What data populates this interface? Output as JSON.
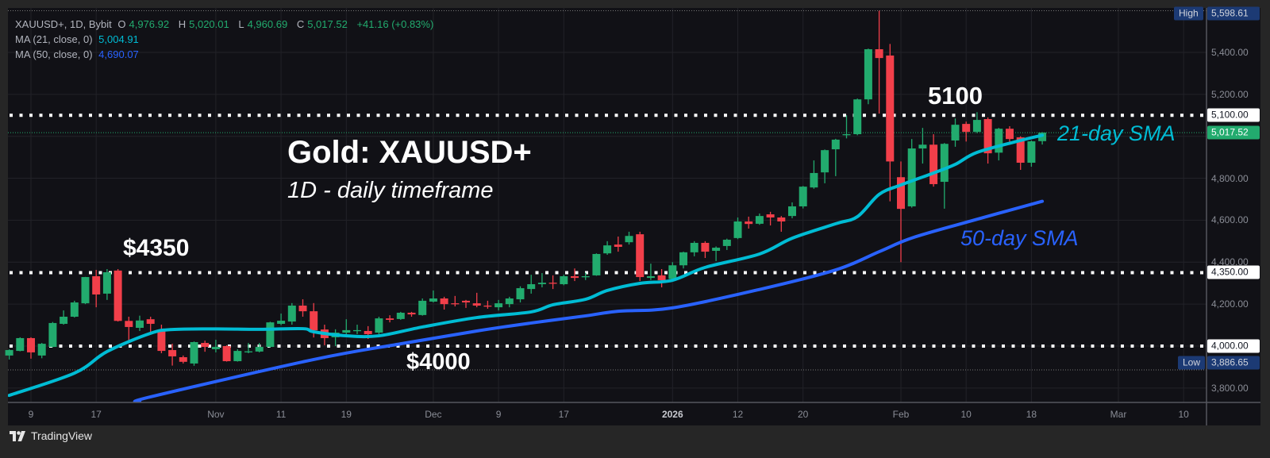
{
  "header": {
    "symbol": "XAUUSD+, 1D, Bybit",
    "open_label": "O",
    "open": "4,976.92",
    "high_label": "H",
    "high": "5,020.01",
    "low_label": "L",
    "low": "4,960.69",
    "close_label": "C",
    "close": "5,017.52",
    "change": "+41.16 (+0.83%)",
    "ma21_label": "MA (21, close, 0)",
    "ma21_value": "5,004.91",
    "ma50_label": "MA (50, close, 0)",
    "ma50_value": "4,690.07"
  },
  "annotations": {
    "title": "Gold: XAUUSD+",
    "subtitle": "1D - daily timeframe",
    "level_4350": "$4350",
    "level_4000": "$4000",
    "level_5100": "5100",
    "sma21_label": "21-day SMA",
    "sma50_label": "50-day SMA"
  },
  "price_axis": {
    "ticks": [
      "5,400.00",
      "5,200.00",
      "4,800.00",
      "4,600.00",
      "4,400.00",
      "4,200.00",
      "3,800.00"
    ],
    "tick_values": [
      5400,
      5200,
      4800,
      4600,
      4400,
      4200,
      3800
    ],
    "high_tag": "High",
    "high_value": "5,598.61",
    "low_tag": "Low",
    "low_value": "3,886.65",
    "level_labels": [
      "5,100.00",
      "4,350.00",
      "4,000.00"
    ],
    "current_price": "5,017.52"
  },
  "time_axis": [
    {
      "label": "9",
      "date": "2025-10-09"
    },
    {
      "label": "17",
      "date": "2025-10-17"
    },
    {
      "label": "Nov",
      "date": "2025-11-03"
    },
    {
      "label": "11",
      "date": "2025-11-11"
    },
    {
      "label": "19",
      "date": "2025-11-19"
    },
    {
      "label": "Dec",
      "date": "2025-12-01"
    },
    {
      "label": "9",
      "date": "2025-12-09"
    },
    {
      "label": "17",
      "date": "2025-12-17"
    },
    {
      "label": "2026",
      "date": "2026-01-02",
      "bold": true
    },
    {
      "label": "12",
      "date": "2026-01-12"
    },
    {
      "label": "20",
      "date": "2026-01-20"
    },
    {
      "label": "Feb",
      "date": "2026-02-02"
    },
    {
      "label": "10",
      "date": "2026-02-10"
    },
    {
      "label": "18",
      "date": "2026-02-18"
    },
    {
      "label": "Mar",
      "date": "2026-03-02"
    },
    {
      "label": "10",
      "date": "2026-03-10"
    }
  ],
  "footer": {
    "brand": "TradingView"
  },
  "colors": {
    "up": "#22ab6e",
    "down": "#f23f4a",
    "ma21": "#00bcd4",
    "ma50": "#2962ff",
    "level_line": "#ffffff",
    "background": "#111116",
    "grid": "#222228"
  },
  "chart_data": {
    "type": "candlestick",
    "symbol": "XAUUSD+",
    "timeframe": "1D",
    "ylim": [
      3730,
      5610
    ],
    "grid": true,
    "horizontal_levels": [
      5100,
      4350,
      4000
    ],
    "high": 5598.61,
    "low": 3886.65,
    "last": 5017.52,
    "candles_columns": [
      "date",
      "open",
      "high",
      "low",
      "close"
    ],
    "candles": [
      [
        "2025-10-07",
        3955,
        3985,
        3936,
        3981
      ],
      [
        "2025-10-08",
        3977,
        4042,
        3975,
        4038
      ],
      [
        "2025-10-09",
        4038,
        4042,
        3940,
        3970
      ],
      [
        "2025-10-10",
        3955,
        4015,
        3942,
        4011
      ],
      [
        "2025-10-13",
        3996,
        4115,
        3994,
        4110
      ],
      [
        "2025-10-14",
        4106,
        4170,
        4102,
        4140
      ],
      [
        "2025-10-15",
        4140,
        4216,
        4136,
        4208
      ],
      [
        "2025-10-16",
        4204,
        4330,
        4200,
        4329
      ],
      [
        "2025-10-17",
        4333,
        4363,
        4185,
        4246
      ],
      [
        "2025-10-20",
        4250,
        4367,
        4220,
        4352
      ],
      [
        "2025-10-21",
        4360,
        4367,
        4117,
        4120
      ],
      [
        "2025-10-22",
        4120,
        4140,
        4015,
        4091
      ],
      [
        "2025-10-23",
        4087,
        4145,
        4072,
        4122
      ],
      [
        "2025-10-24",
        4128,
        4140,
        4060,
        4106
      ],
      [
        "2025-10-27",
        4075,
        4102,
        3966,
        3977
      ],
      [
        "2025-10-28",
        3981,
        4011,
        3907,
        3951
      ],
      [
        "2025-10-29",
        3947,
        3955,
        3917,
        3925
      ],
      [
        "2025-10-30",
        3917,
        4022,
        3906,
        4019
      ],
      [
        "2025-10-31",
        4015,
        4026,
        3973,
        3996
      ],
      [
        "2025-11-03",
        3985,
        4030,
        3970,
        3996
      ],
      [
        "2025-11-04",
        4000,
        4004,
        3926,
        3928
      ],
      [
        "2025-11-05",
        3928,
        3985,
        3926,
        3977
      ],
      [
        "2025-11-06",
        3972,
        4015,
        3966,
        3975
      ],
      [
        "2025-11-07",
        3974,
        4015,
        3970,
        3996
      ],
      [
        "2025-11-10",
        3996,
        4116,
        3994,
        4113
      ],
      [
        "2025-11-11",
        4106,
        4155,
        4100,
        4121
      ],
      [
        "2025-11-12",
        4117,
        4205,
        4102,
        4193
      ],
      [
        "2025-11-13",
        4193,
        4223,
        4140,
        4166
      ],
      [
        "2025-11-14",
        4166,
        4205,
        4041,
        4075
      ],
      [
        "2025-11-17",
        4079,
        4102,
        4004,
        4038
      ],
      [
        "2025-11-18",
        4042,
        4080,
        4000,
        4064
      ],
      [
        "2025-11-19",
        4064,
        4128,
        4057,
        4076
      ],
      [
        "2025-11-20",
        4072,
        4102,
        4057,
        4076
      ],
      [
        "2025-11-21",
        4072,
        4095,
        4034,
        4057
      ],
      [
        "2025-11-24",
        4064,
        4140,
        4057,
        4132
      ],
      [
        "2025-11-25",
        4132,
        4147,
        4113,
        4125
      ],
      [
        "2025-11-26",
        4129,
        4163,
        4125,
        4159
      ],
      [
        "2025-11-27",
        4159,
        4163,
        4140,
        4151
      ],
      [
        "2025-11-28",
        4148,
        4227,
        4145,
        4216
      ],
      [
        "2025-12-01",
        4212,
        4265,
        4208,
        4227
      ],
      [
        "2025-12-02",
        4227,
        4235,
        4174,
        4200
      ],
      [
        "2025-12-03",
        4204,
        4239,
        4189,
        4200
      ],
      [
        "2025-12-04",
        4216,
        4220,
        4182,
        4208
      ],
      [
        "2025-12-05",
        4204,
        4254,
        4185,
        4193
      ],
      [
        "2025-12-08",
        4193,
        4216,
        4178,
        4189
      ],
      [
        "2025-12-09",
        4185,
        4220,
        4170,
        4204
      ],
      [
        "2025-12-10",
        4200,
        4235,
        4185,
        4227
      ],
      [
        "2025-12-11",
        4223,
        4285,
        4208,
        4276
      ],
      [
        "2025-12-12",
        4272,
        4340,
        4250,
        4295
      ],
      [
        "2025-12-15",
        4295,
        4348,
        4280,
        4302
      ],
      [
        "2025-12-16",
        4302,
        4337,
        4272,
        4298
      ],
      [
        "2025-12-17",
        4295,
        4340,
        4290,
        4333
      ],
      [
        "2025-12-18",
        4333,
        4370,
        4310,
        4325
      ],
      [
        "2025-12-19",
        4328,
        4350,
        4315,
        4333
      ],
      [
        "2025-12-22",
        4337,
        4442,
        4335,
        4439
      ],
      [
        "2025-12-23",
        4442,
        4500,
        4435,
        4480
      ],
      [
        "2025-12-24",
        4484,
        4522,
        4450,
        4473
      ],
      [
        "2025-12-26",
        4495,
        4545,
        4484,
        4525
      ],
      [
        "2025-12-29",
        4533,
        4545,
        4310,
        4329
      ],
      [
        "2025-12-30",
        4325,
        4393,
        4315,
        4333
      ],
      [
        "2025-12-31",
        4337,
        4367,
        4280,
        4314
      ],
      [
        "2026-01-02",
        4320,
        4400,
        4315,
        4385
      ],
      [
        "2026-01-05",
        4385,
        4450,
        4370,
        4447
      ],
      [
        "2026-01-06",
        4447,
        4500,
        4428,
        4492
      ],
      [
        "2026-01-07",
        4492,
        4500,
        4420,
        4450
      ],
      [
        "2026-01-08",
        4454,
        4475,
        4405,
        4469
      ],
      [
        "2026-01-09",
        4477,
        4512,
        4458,
        4507
      ],
      [
        "2026-01-12",
        4515,
        4613,
        4510,
        4594
      ],
      [
        "2026-01-13",
        4594,
        4617,
        4560,
        4582
      ],
      [
        "2026-01-14",
        4583,
        4632,
        4578,
        4620
      ],
      [
        "2026-01-15",
        4628,
        4640,
        4575,
        4613
      ],
      [
        "2026-01-16",
        4613,
        4620,
        4545,
        4594
      ],
      [
        "2026-01-19",
        4620,
        4685,
        4609,
        4666
      ],
      [
        "2026-01-20",
        4666,
        4763,
        4656,
        4760
      ],
      [
        "2026-01-21",
        4756,
        4885,
        4750,
        4825
      ],
      [
        "2026-01-22",
        4828,
        4937,
        4776,
        4934
      ],
      [
        "2026-01-23",
        4938,
        4988,
        4810,
        4984
      ],
      [
        "2026-01-26",
        5006,
        5100,
        4990,
        5010
      ],
      [
        "2026-01-27",
        5010,
        5180,
        5005,
        5176
      ],
      [
        "2026-01-28",
        5176,
        5418,
        5153,
        5415
      ],
      [
        "2026-01-29",
        5415,
        5598.61,
        5108,
        5373
      ],
      [
        "2026-01-30",
        5385,
        5440,
        4690,
        4880
      ],
      [
        "2026-02-02",
        4805,
        4880,
        4400,
        4654
      ],
      [
        "2026-02-03",
        4666,
        4987,
        4660,
        4942
      ],
      [
        "2026-02-04",
        4942,
        5040,
        4870,
        4960
      ],
      [
        "2026-02-05",
        4960,
        5010,
        4760,
        4772
      ],
      [
        "2026-02-06",
        4783,
        4968,
        4655,
        4964
      ],
      [
        "2026-02-09",
        4980,
        5085,
        4950,
        5055
      ],
      [
        "2026-02-10",
        5059,
        5070,
        4975,
        5021
      ],
      [
        "2026-02-11",
        5021,
        5115,
        5015,
        5078
      ],
      [
        "2026-02-12",
        5082,
        5090,
        4870,
        4919
      ],
      [
        "2026-02-13",
        4922,
        5040,
        4885,
        5036
      ],
      [
        "2026-02-16",
        5036,
        5048,
        4960,
        4987
      ],
      [
        "2026-02-17",
        4995,
        5000,
        4840,
        4874
      ],
      [
        "2026-02-18",
        4874,
        4980,
        4855,
        4976
      ],
      [
        "2026-02-19",
        4976.92,
        5020.01,
        4960.69,
        5017.52
      ]
    ],
    "ma21": [
      [
        "2025-10-07",
        3765
      ],
      [
        "2025-10-15",
        3871
      ],
      [
        "2025-10-20",
        3974
      ],
      [
        "2025-10-24",
        4061
      ],
      [
        "2025-10-28",
        4079
      ],
      [
        "2025-11-03",
        4082
      ],
      [
        "2025-11-07",
        4080
      ],
      [
        "2025-11-13",
        4083
      ],
      [
        "2025-11-14",
        4068
      ],
      [
        "2025-11-19",
        4049
      ],
      [
        "2025-11-24",
        4049
      ],
      [
        "2025-11-28",
        4091
      ],
      [
        "2025-12-05",
        4136
      ],
      [
        "2025-12-12",
        4163
      ],
      [
        "2025-12-16",
        4197
      ],
      [
        "2025-12-19",
        4223
      ],
      [
        "2025-12-23",
        4265
      ],
      [
        "2025-12-29",
        4299
      ],
      [
        "2026-01-02",
        4314
      ],
      [
        "2026-01-07",
        4375
      ],
      [
        "2026-01-14",
        4439
      ],
      [
        "2026-01-19",
        4514
      ],
      [
        "2026-01-23",
        4583
      ],
      [
        "2026-01-27",
        4617
      ],
      [
        "2026-01-29",
        4723
      ],
      [
        "2026-02-02",
        4768
      ],
      [
        "2026-02-05",
        4825
      ],
      [
        "2026-02-09",
        4866
      ],
      [
        "2026-02-11",
        4923
      ],
      [
        "2026-02-17",
        4980
      ],
      [
        "2026-02-19",
        5004.91
      ]
    ],
    "ma50": [
      [
        "2025-10-23",
        3735
      ],
      [
        "2025-10-24",
        3758
      ],
      [
        "2025-11-14",
        3936
      ],
      [
        "2025-11-26",
        4011
      ],
      [
        "2025-12-05",
        4072
      ],
      [
        "2025-12-12",
        4110
      ],
      [
        "2025-12-19",
        4144
      ],
      [
        "2025-12-24",
        4166
      ],
      [
        "2026-01-02",
        4182
      ],
      [
        "2026-01-14",
        4270
      ],
      [
        "2026-01-23",
        4363
      ],
      [
        "2026-01-29",
        4450
      ],
      [
        "2026-02-03",
        4515
      ],
      [
        "2026-02-10",
        4590
      ],
      [
        "2026-02-19",
        4690.07
      ]
    ]
  }
}
